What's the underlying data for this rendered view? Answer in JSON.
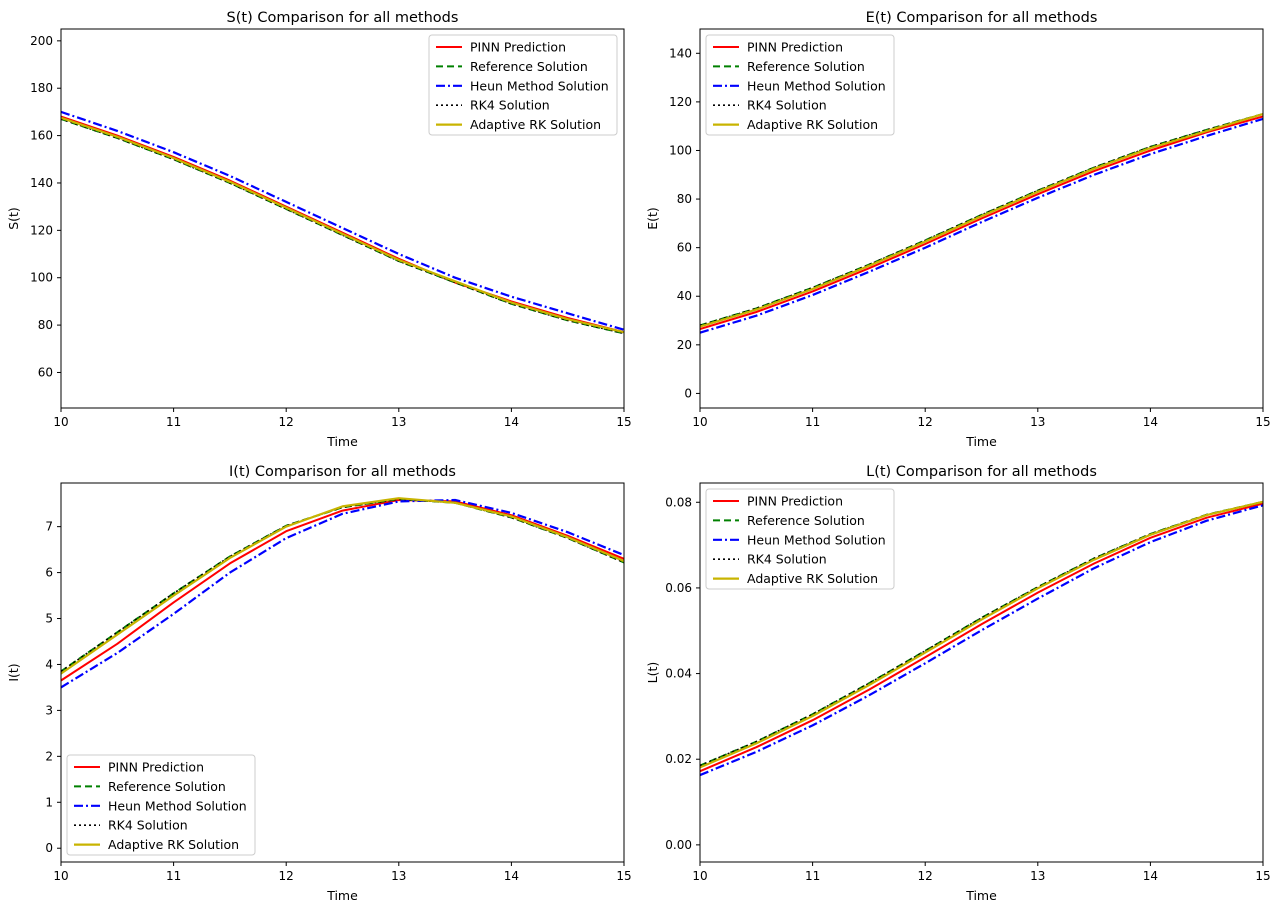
{
  "figure": {
    "layout": "2x2 grid"
  },
  "styles": {
    "PINN Prediction": {
      "color": "#ff0000",
      "dash": "solid",
      "stroke": 2.0
    },
    "Reference Solution": {
      "color": "#008000",
      "dash": "dashed",
      "stroke": 2.0
    },
    "Heun Method Solution": {
      "color": "#0000ff",
      "dash": "dashdot",
      "stroke": 2.2
    },
    "RK4 Solution": {
      "color": "#000000",
      "dash": "dotted",
      "stroke": 1.6
    },
    "Adaptive RK Solution": {
      "color": "#c8b400",
      "dash": "solid",
      "stroke": 2.2
    }
  },
  "chart_data": [
    {
      "type": "line",
      "title": "S(t) Comparison for all methods",
      "xlabel": "Time",
      "ylabel": "S(t)",
      "xlim": [
        10,
        15
      ],
      "ylim": [
        45,
        205
      ],
      "xticks": [
        10,
        11,
        12,
        13,
        14,
        15
      ],
      "yticks": [
        60,
        80,
        100,
        120,
        140,
        160,
        180,
        200
      ],
      "yticklabels": [
        "60",
        "80",
        "100",
        "120",
        "140",
        "160",
        "180",
        "200"
      ],
      "legend_loc": "upper right",
      "x": [
        10,
        10.5,
        11,
        11.5,
        12,
        12.5,
        13,
        13.5,
        14,
        14.5,
        15
      ],
      "series": [
        {
          "name": "PINN Prediction",
          "values": [
            168,
            160,
            151,
            141,
            130,
            119,
            108,
            98,
            90,
            83,
            77
          ]
        },
        {
          "name": "Reference Solution",
          "values": [
            167,
            159,
            150,
            140,
            129,
            118,
            107,
            98,
            89,
            82,
            76.5
          ]
        },
        {
          "name": "Heun Method Solution",
          "values": [
            170,
            162,
            153,
            143,
            132,
            121,
            110,
            100,
            92,
            85,
            78
          ]
        },
        {
          "name": "RK4 Solution",
          "values": [
            167,
            159,
            150,
            140,
            129,
            118,
            107,
            98,
            89,
            82,
            76.5
          ]
        },
        {
          "name": "Adaptive RK Solution",
          "values": [
            167.5,
            159.5,
            150.5,
            140.5,
            129.5,
            118.5,
            107.5,
            98.5,
            89.5,
            82.5,
            77
          ]
        }
      ]
    },
    {
      "type": "line",
      "title": "E(t) Comparison for all methods",
      "xlabel": "Time",
      "ylabel": "E(t)",
      "xlim": [
        10,
        15
      ],
      "ylim": [
        -6,
        150
      ],
      "xticks": [
        10,
        11,
        12,
        13,
        14,
        15
      ],
      "yticks": [
        0,
        20,
        40,
        60,
        80,
        100,
        120,
        140
      ],
      "yticklabels": [
        "0",
        "20",
        "40",
        "60",
        "80",
        "100",
        "120",
        "140"
      ],
      "legend_loc": "upper left",
      "x": [
        10,
        10.5,
        11,
        11.5,
        12,
        12.5,
        13,
        13.5,
        14,
        14.5,
        15
      ],
      "series": [
        {
          "name": "PINN Prediction",
          "values": [
            26.5,
            33.5,
            42,
            51.5,
            61.5,
            72,
            82,
            91.5,
            100,
            107.5,
            114
          ]
        },
        {
          "name": "Reference Solution",
          "values": [
            28,
            35,
            43.5,
            53,
            63,
            73.5,
            83.5,
            93,
            101.5,
            108.5,
            115
          ]
        },
        {
          "name": "Heun Method Solution",
          "values": [
            25,
            32,
            40.5,
            50,
            60,
            70.5,
            80.5,
            90,
            98.5,
            106,
            113
          ]
        },
        {
          "name": "RK4 Solution",
          "values": [
            28,
            35,
            43.5,
            53,
            63,
            73.5,
            83.5,
            93,
            101.5,
            108.5,
            115
          ]
        },
        {
          "name": "Adaptive RK Solution",
          "values": [
            27.5,
            34.5,
            43,
            52.5,
            62.5,
            73,
            83,
            92.5,
            101,
            108,
            115
          ]
        }
      ]
    },
    {
      "type": "line",
      "title": "I(t) Comparison for all methods",
      "xlabel": "Time",
      "ylabel": "I(t)",
      "xlim": [
        10,
        15
      ],
      "ylim": [
        -0.3,
        7.95
      ],
      "xticks": [
        10,
        11,
        12,
        13,
        14,
        15
      ],
      "yticks": [
        0,
        1,
        2,
        3,
        4,
        5,
        6,
        7
      ],
      "yticklabels": [
        "0",
        "1",
        "2",
        "3",
        "4",
        "5",
        "6",
        "7"
      ],
      "legend_loc": "lower left",
      "x": [
        10,
        10.5,
        11,
        11.5,
        12,
        12.5,
        13,
        13.5,
        14,
        14.5,
        15
      ],
      "series": [
        {
          "name": "PINN Prediction",
          "values": [
            3.65,
            4.45,
            5.35,
            6.2,
            6.9,
            7.35,
            7.58,
            7.55,
            7.25,
            6.8,
            6.3
          ]
        },
        {
          "name": "Reference Solution",
          "values": [
            3.85,
            4.7,
            5.55,
            6.35,
            7.02,
            7.42,
            7.6,
            7.52,
            7.2,
            6.75,
            6.22
          ]
        },
        {
          "name": "Heun Method Solution",
          "values": [
            3.5,
            4.25,
            5.1,
            6.0,
            6.75,
            7.28,
            7.55,
            7.58,
            7.3,
            6.88,
            6.38
          ]
        },
        {
          "name": "RK4 Solution",
          "values": [
            3.85,
            4.7,
            5.55,
            6.35,
            7.02,
            7.42,
            7.6,
            7.52,
            7.2,
            6.75,
            6.22
          ]
        },
        {
          "name": "Adaptive RK Solution",
          "values": [
            3.8,
            4.65,
            5.5,
            6.32,
            7.0,
            7.44,
            7.62,
            7.52,
            7.22,
            6.77,
            6.25
          ]
        }
      ]
    },
    {
      "type": "line",
      "title": "L(t) Comparison for all methods",
      "xlabel": "Time",
      "ylabel": "L(t)",
      "xlim": [
        10,
        15
      ],
      "ylim": [
        -0.004,
        0.0845
      ],
      "xticks": [
        10,
        11,
        12,
        13,
        14,
        15
      ],
      "yticks": [
        0,
        0.02,
        0.04,
        0.06,
        0.08
      ],
      "yticklabels": [
        "0.00",
        "0.02",
        "0.04",
        "0.06",
        "0.08"
      ],
      "legend_loc": "upper left",
      "x": [
        10,
        10.5,
        11,
        11.5,
        12,
        12.5,
        13,
        13.5,
        14,
        14.5,
        15
      ],
      "series": [
        {
          "name": "PINN Prediction",
          "values": [
            0.0172,
            0.0228,
            0.0291,
            0.0362,
            0.0438,
            0.0515,
            0.0589,
            0.0657,
            0.0717,
            0.0764,
            0.0797
          ]
        },
        {
          "name": "Reference Solution",
          "values": [
            0.0185,
            0.0241,
            0.0305,
            0.0377,
            0.0453,
            0.053,
            0.0602,
            0.0669,
            0.0726,
            0.0771,
            0.0801
          ]
        },
        {
          "name": "Heun Method Solution",
          "values": [
            0.0163,
            0.0217,
            0.0279,
            0.0349,
            0.0424,
            0.0501,
            0.0575,
            0.0646,
            0.0707,
            0.0757,
            0.0793
          ]
        },
        {
          "name": "RK4 Solution",
          "values": [
            0.0185,
            0.0241,
            0.0305,
            0.0377,
            0.0453,
            0.053,
            0.0602,
            0.0669,
            0.0726,
            0.0771,
            0.0801
          ]
        },
        {
          "name": "Adaptive RK Solution",
          "values": [
            0.0181,
            0.0237,
            0.0301,
            0.0373,
            0.0449,
            0.0526,
            0.0599,
            0.0666,
            0.0724,
            0.077,
            0.0801
          ]
        }
      ]
    }
  ]
}
